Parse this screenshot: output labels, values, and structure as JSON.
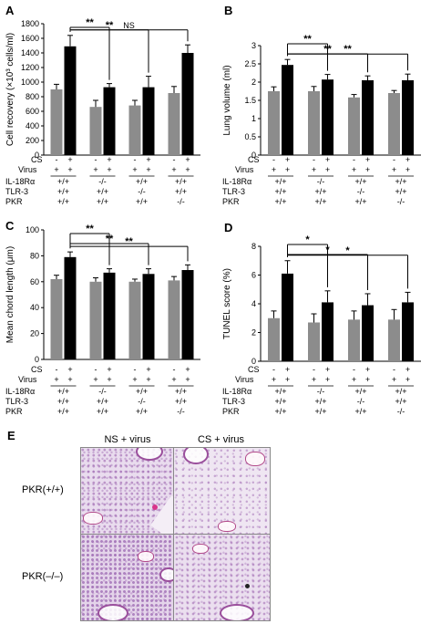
{
  "panels": [
    {
      "id": "A",
      "ylabel": "Cell recovery (×10³ cells/ml)",
      "ylim": [
        0,
        1800
      ],
      "yticks": [
        "0",
        "200",
        "400",
        "600",
        "800",
        "1000",
        "1200",
        "1400",
        "1600",
        "1800"
      ],
      "groups": [
        {
          "gray": 900,
          "gray_err": 70,
          "black": 1490,
          "black_err": 150
        },
        {
          "gray": 660,
          "gray_err": 90,
          "black": 930,
          "black_err": 50
        },
        {
          "gray": 680,
          "gray_err": 70,
          "black": 930,
          "black_err": 150
        },
        {
          "gray": 850,
          "gray_err": 90,
          "black": 1400,
          "black_err": 110
        }
      ],
      "sig": [
        "**",
        "**",
        "NS"
      ]
    },
    {
      "id": "B",
      "ylabel": "Lung volume (ml)",
      "ylim": [
        0,
        3
      ],
      "yticks": [
        "0",
        "0.5",
        "1",
        "1.5",
        "2",
        "2.5",
        "3"
      ],
      "groups": [
        {
          "gray": 1.75,
          "gray_err": 0.12,
          "black": 2.47,
          "black_err": 0.15
        },
        {
          "gray": 1.75,
          "gray_err": 0.13,
          "black": 2.07,
          "black_err": 0.14
        },
        {
          "gray": 1.58,
          "gray_err": 0.08,
          "black": 2.05,
          "black_err": 0.12
        },
        {
          "gray": 1.7,
          "gray_err": 0.07,
          "black": 2.05,
          "black_err": 0.17
        }
      ],
      "sig": [
        "**",
        "**",
        "**"
      ]
    },
    {
      "id": "C",
      "ylabel": "Mean chord length (μm)",
      "ylim": [
        0,
        100
      ],
      "yticks": [
        "0",
        "20",
        "40",
        "60",
        "80",
        "100"
      ],
      "groups": [
        {
          "gray": 62,
          "gray_err": 3,
          "black": 79,
          "black_err": 4
        },
        {
          "gray": 60,
          "gray_err": 3,
          "black": 67,
          "black_err": 3
        },
        {
          "gray": 60,
          "gray_err": 2,
          "black": 66,
          "black_err": 4
        },
        {
          "gray": 61,
          "gray_err": 3,
          "black": 69,
          "black_err": 4
        }
      ],
      "sig": [
        "**",
        "**",
        "**"
      ]
    },
    {
      "id": "D",
      "ylabel": "TUNEL score (%)",
      "ylim": [
        0,
        8
      ],
      "yticks": [
        "0",
        "2",
        "4",
        "6",
        "8"
      ],
      "groups": [
        {
          "gray": 3.0,
          "gray_err": 0.5,
          "black": 6.1,
          "black_err": 0.9
        },
        {
          "gray": 2.7,
          "gray_err": 0.6,
          "black": 4.1,
          "black_err": 0.8
        },
        {
          "gray": 2.9,
          "gray_err": 0.6,
          "black": 3.9,
          "black_err": 0.8
        },
        {
          "gray": 2.9,
          "gray_err": 0.7,
          "black": 4.1,
          "black_err": 0.7
        }
      ],
      "sig": [
        "*",
        "*",
        "*"
      ]
    }
  ],
  "conditions": {
    "row_labels": [
      "CS",
      "Virus",
      "IL-18Rα",
      "TLR-3",
      "PKR"
    ],
    "cs": [
      "-",
      "+"
    ],
    "virus": [
      "+",
      "+"
    ],
    "il18ra": [
      "+/+",
      "-/-",
      "+/+",
      "+/+"
    ],
    "tlr3": [
      "+/+",
      "+/+",
      "-/-",
      "+/+"
    ],
    "pkr": [
      "+/+",
      "+/+",
      "+/+",
      "-/-"
    ]
  },
  "histology": {
    "label": "E",
    "col_labels": [
      "NS + virus",
      "CS + virus"
    ],
    "row_labels": [
      "PKR(+/+)",
      "PKR(–/–)"
    ]
  },
  "colors": {
    "gray_bar": "#8c8c8c",
    "black_bar": "#000000"
  },
  "chart_data": [
    {
      "type": "bar",
      "panel": "A",
      "categories": [
        "IL-18Rα +/+ TLR-3 +/+ PKR +/+",
        "IL-18Rα -/- TLR-3 +/+ PKR +/+",
        "IL-18Rα +/+ TLR-3 -/- PKR +/+",
        "IL-18Rα +/+ TLR-3 +/+ PKR -/-"
      ],
      "series": [
        {
          "name": "CS -",
          "values": [
            900,
            660,
            680,
            850
          ],
          "errors": [
            70,
            90,
            70,
            90
          ]
        },
        {
          "name": "CS +",
          "values": [
            1490,
            930,
            930,
            1400
          ],
          "errors": [
            150,
            50,
            150,
            110
          ]
        }
      ],
      "ylabel": "Cell recovery (×10³ cells/ml)",
      "ylim": [
        0,
        1800
      ]
    },
    {
      "type": "bar",
      "panel": "B",
      "categories": [
        "IL-18Rα +/+ TLR-3 +/+ PKR +/+",
        "IL-18Rα -/- TLR-3 +/+ PKR +/+",
        "IL-18Rα +/+ TLR-3 -/- PKR +/+",
        "IL-18Rα +/+ TLR-3 +/+ PKR -/-"
      ],
      "series": [
        {
          "name": "CS -",
          "values": [
            1.75,
            1.75,
            1.58,
            1.7
          ],
          "errors": [
            0.12,
            0.13,
            0.08,
            0.07
          ]
        },
        {
          "name": "CS +",
          "values": [
            2.47,
            2.07,
            2.05,
            2.05
          ],
          "errors": [
            0.15,
            0.14,
            0.12,
            0.17
          ]
        }
      ],
      "ylabel": "Lung volume (ml)",
      "ylim": [
        0,
        3
      ]
    },
    {
      "type": "bar",
      "panel": "C",
      "categories": [
        "IL-18Rα +/+ TLR-3 +/+ PKR +/+",
        "IL-18Rα -/- TLR-3 +/+ PKR +/+",
        "IL-18Rα +/+ TLR-3 -/- PKR +/+",
        "IL-18Rα +/+ TLR-3 +/+ PKR -/-"
      ],
      "series": [
        {
          "name": "CS -",
          "values": [
            62,
            60,
            60,
            61
          ],
          "errors": [
            3,
            3,
            2,
            3
          ]
        },
        {
          "name": "CS +",
          "values": [
            79,
            67,
            66,
            69
          ],
          "errors": [
            4,
            3,
            4,
            4
          ]
        }
      ],
      "ylabel": "Mean chord length (μm)",
      "ylim": [
        0,
        100
      ]
    },
    {
      "type": "bar",
      "panel": "D",
      "categories": [
        "IL-18Rα +/+ TLR-3 +/+ PKR +/+",
        "IL-18Rα -/- TLR-3 +/+ PKR +/+",
        "IL-18Rα +/+ TLR-3 -/- PKR +/+",
        "IL-18Rα +/+ TLR-3 +/+ PKR -/-"
      ],
      "series": [
        {
          "name": "CS -",
          "values": [
            3.0,
            2.7,
            2.9,
            2.9
          ],
          "errors": [
            0.5,
            0.6,
            0.6,
            0.7
          ]
        },
        {
          "name": "CS +",
          "values": [
            6.1,
            4.1,
            3.9,
            4.1
          ],
          "errors": [
            0.9,
            0.8,
            0.8,
            0.7
          ]
        }
      ],
      "ylabel": "TUNEL score (%)",
      "ylim": [
        0,
        8
      ]
    }
  ]
}
